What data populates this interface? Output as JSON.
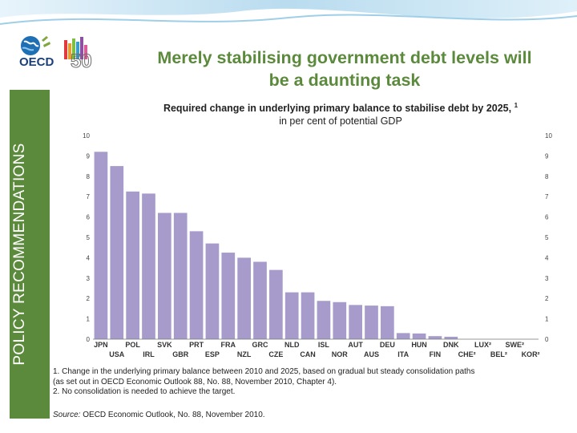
{
  "slide": {
    "sidebar_label": "POLICY RECOMMENDATIONS",
    "title_line1": "Merely stabilising government debt levels will",
    "title_line2": "be a daunting task",
    "logo_text": "OECD",
    "logo_anniversary": "50",
    "accent_color": "#5c8a3c",
    "bar_color": "#a79bcb"
  },
  "chart_data": {
    "type": "bar",
    "title": "Required change in underlying primary balance to stabilise debt by 2025,",
    "title_superscript": "1",
    "subtitle": "in per cent of potential GDP",
    "xlabel": "",
    "ylabel": "",
    "ylim": [
      0,
      10
    ],
    "yticks": [
      "0",
      "1",
      "2",
      "3",
      "4",
      "5",
      "6",
      "7",
      "8",
      "9",
      "10"
    ],
    "categories": [
      "JPN",
      "USA",
      "POL",
      "IRL",
      "SVK",
      "GBR",
      "PRT",
      "ESP",
      "FRA",
      "NZL",
      "GRC",
      "CZE",
      "NLD",
      "CAN",
      "ISL",
      "NOR",
      "AUT",
      "AUS",
      "DEU",
      "ITA",
      "HUN",
      "FIN",
      "DNK",
      "CHE²",
      "LUX²",
      "BEL²",
      "SWE²",
      "KOR²"
    ],
    "values": [
      9.2,
      8.5,
      7.25,
      7.15,
      6.2,
      6.2,
      5.3,
      4.7,
      4.25,
      4.0,
      3.8,
      3.4,
      2.3,
      2.3,
      1.88,
      1.82,
      1.68,
      1.65,
      1.62,
      0.3,
      0.28,
      0.15,
      0.12,
      0,
      0,
      0,
      0,
      0
    ]
  },
  "notes": {
    "note1_line1": "1. Change in the underlying primary balance between 2010 and 2025, based on gradual but steady consolidation paths",
    "note1_line2": "(as set out in OECD Economic Outlook 88, No. 88, November 2010, Chapter 4).",
    "note2": "2. No consolidation is needed to achieve the target.",
    "source_label": "Source:",
    "source_text": "OECD Economic Outlook, No. 88, November 2010."
  }
}
